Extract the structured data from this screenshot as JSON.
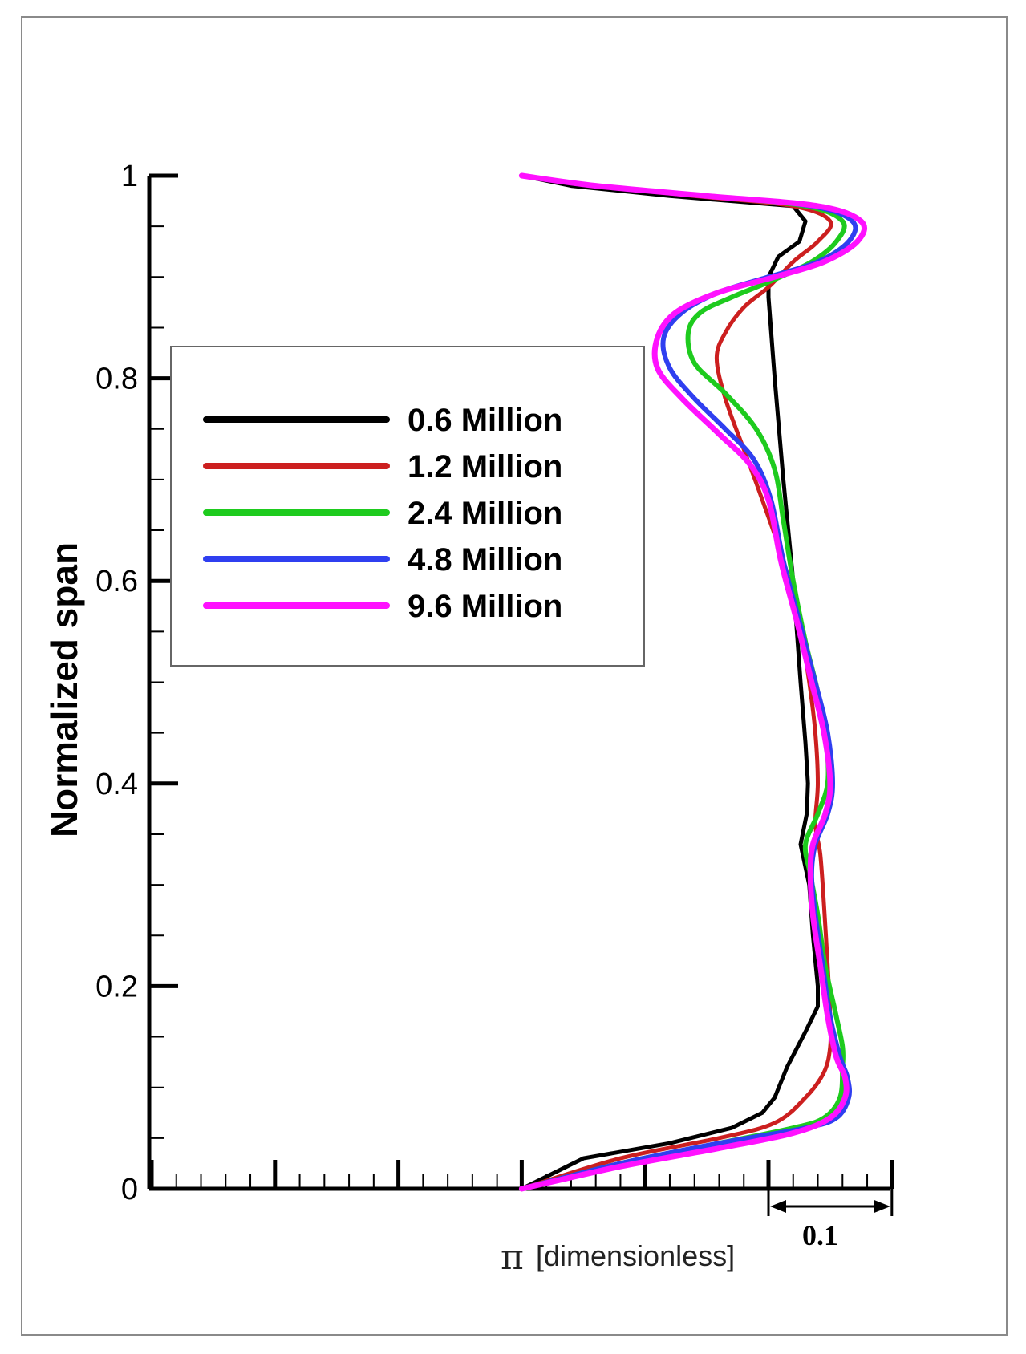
{
  "chart_data": {
    "type": "line",
    "title": "",
    "xlabel_symbol": "π",
    "xlabel_unit": "[dimensionless]",
    "ylabel": "Normalized span",
    "ylim": [
      0,
      1
    ],
    "y_ticks": [
      "0",
      "0.2",
      "0.4",
      "0.6",
      "0.8",
      "1"
    ],
    "y_tick_values": [
      0,
      0.2,
      0.4,
      0.6,
      0.8,
      1
    ],
    "scale_bar_label": "0.1",
    "scale_bar_value": 0.1,
    "xlim": [
      -0.5,
      0.1
    ],
    "x_major_tick_values": [
      -0.5,
      -0.4,
      -0.3,
      -0.2,
      -0.1,
      0.0,
      0.1
    ],
    "legend_position": "upper-left",
    "series": [
      {
        "name": "0.6 Million",
        "color": "#000000",
        "points": [
          [
            -0.2,
            1.0
          ],
          [
            -0.16,
            0.99
          ],
          [
            -0.08,
            0.98
          ],
          [
            0.02,
            0.97
          ],
          [
            0.03,
            0.955
          ],
          [
            0.025,
            0.935
          ],
          [
            0.008,
            0.92
          ],
          [
            0.0,
            0.9
          ],
          [
            0.0,
            0.88
          ],
          [
            0.005,
            0.8
          ],
          [
            0.012,
            0.7
          ],
          [
            0.02,
            0.6
          ],
          [
            0.026,
            0.5
          ],
          [
            0.03,
            0.44
          ],
          [
            0.032,
            0.4
          ],
          [
            0.031,
            0.37
          ],
          [
            0.026,
            0.34
          ],
          [
            0.033,
            0.3
          ],
          [
            0.036,
            0.25
          ],
          [
            0.04,
            0.2
          ],
          [
            0.04,
            0.18
          ],
          [
            0.03,
            0.155
          ],
          [
            0.015,
            0.12
          ],
          [
            0.005,
            0.09
          ],
          [
            -0.005,
            0.075
          ],
          [
            -0.03,
            0.06
          ],
          [
            -0.08,
            0.045
          ],
          [
            -0.15,
            0.03
          ],
          [
            -0.2,
            0.0
          ]
        ]
      },
      {
        "name": "1.2 Million",
        "color": "#cc1f1f",
        "points": [
          [
            -0.2,
            1.0
          ],
          [
            -0.14,
            0.99
          ],
          [
            -0.06,
            0.98
          ],
          [
            0.02,
            0.97
          ],
          [
            0.05,
            0.955
          ],
          [
            0.04,
            0.935
          ],
          [
            0.02,
            0.915
          ],
          [
            0.0,
            0.89
          ],
          [
            -0.02,
            0.87
          ],
          [
            -0.035,
            0.845
          ],
          [
            -0.042,
            0.82
          ],
          [
            -0.035,
            0.78
          ],
          [
            -0.02,
            0.73
          ],
          [
            -0.005,
            0.68
          ],
          [
            0.012,
            0.62
          ],
          [
            0.025,
            0.56
          ],
          [
            0.033,
            0.5
          ],
          [
            0.038,
            0.45
          ],
          [
            0.04,
            0.4
          ],
          [
            0.038,
            0.36
          ],
          [
            0.042,
            0.33
          ],
          [
            0.045,
            0.28
          ],
          [
            0.048,
            0.22
          ],
          [
            0.05,
            0.17
          ],
          [
            0.05,
            0.14
          ],
          [
            0.045,
            0.115
          ],
          [
            0.03,
            0.09
          ],
          [
            0.005,
            0.065
          ],
          [
            -0.04,
            0.05
          ],
          [
            -0.12,
            0.03
          ],
          [
            -0.2,
            0.0
          ]
        ]
      },
      {
        "name": "2.4 Million",
        "color": "#1ecb1e",
        "points": [
          [
            -0.2,
            1.0
          ],
          [
            -0.14,
            0.99
          ],
          [
            -0.05,
            0.98
          ],
          [
            0.03,
            0.97
          ],
          [
            0.06,
            0.955
          ],
          [
            0.055,
            0.935
          ],
          [
            0.035,
            0.915
          ],
          [
            0.0,
            0.895
          ],
          [
            -0.03,
            0.88
          ],
          [
            -0.055,
            0.865
          ],
          [
            -0.065,
            0.845
          ],
          [
            -0.06,
            0.815
          ],
          [
            -0.035,
            0.785
          ],
          [
            -0.01,
            0.75
          ],
          [
            0.005,
            0.71
          ],
          [
            0.012,
            0.66
          ],
          [
            0.02,
            0.6
          ],
          [
            0.03,
            0.54
          ],
          [
            0.04,
            0.49
          ],
          [
            0.047,
            0.44
          ],
          [
            0.048,
            0.4
          ],
          [
            0.04,
            0.37
          ],
          [
            0.03,
            0.34
          ],
          [
            0.034,
            0.31
          ],
          [
            0.04,
            0.27
          ],
          [
            0.046,
            0.22
          ],
          [
            0.055,
            0.17
          ],
          [
            0.06,
            0.14
          ],
          [
            0.06,
            0.12
          ],
          [
            0.058,
            0.09
          ],
          [
            0.045,
            0.07
          ],
          [
            0.02,
            0.06
          ],
          [
            -0.04,
            0.045
          ],
          [
            -0.12,
            0.025
          ],
          [
            -0.2,
            0.0
          ]
        ]
      },
      {
        "name": "4.8 Million",
        "color": "#2f3ff0",
        "points": [
          [
            -0.2,
            1.0
          ],
          [
            -0.14,
            0.99
          ],
          [
            -0.05,
            0.98
          ],
          [
            0.035,
            0.97
          ],
          [
            0.068,
            0.955
          ],
          [
            0.065,
            0.935
          ],
          [
            0.04,
            0.915
          ],
          [
            0.0,
            0.9
          ],
          [
            -0.04,
            0.885
          ],
          [
            -0.07,
            0.865
          ],
          [
            -0.085,
            0.84
          ],
          [
            -0.08,
            0.81
          ],
          [
            -0.06,
            0.78
          ],
          [
            -0.035,
            0.75
          ],
          [
            -0.012,
            0.72
          ],
          [
            0.002,
            0.68
          ],
          [
            0.012,
            0.62
          ],
          [
            0.025,
            0.56
          ],
          [
            0.038,
            0.5
          ],
          [
            0.048,
            0.45
          ],
          [
            0.052,
            0.4
          ],
          [
            0.048,
            0.37
          ],
          [
            0.038,
            0.34
          ],
          [
            0.035,
            0.31
          ],
          [
            0.038,
            0.27
          ],
          [
            0.044,
            0.22
          ],
          [
            0.05,
            0.17
          ],
          [
            0.058,
            0.13
          ],
          [
            0.064,
            0.11
          ],
          [
            0.065,
            0.09
          ],
          [
            0.055,
            0.07
          ],
          [
            0.03,
            0.06
          ],
          [
            -0.04,
            0.045
          ],
          [
            -0.12,
            0.025
          ],
          [
            -0.2,
            0.0
          ]
        ]
      },
      {
        "name": "9.6 Million",
        "color": "#ff11ff",
        "points": [
          [
            -0.2,
            1.0
          ],
          [
            -0.14,
            0.99
          ],
          [
            -0.05,
            0.98
          ],
          [
            0.04,
            0.97
          ],
          [
            0.075,
            0.955
          ],
          [
            0.072,
            0.935
          ],
          [
            0.045,
            0.915
          ],
          [
            0.005,
            0.9
          ],
          [
            -0.04,
            0.885
          ],
          [
            -0.075,
            0.865
          ],
          [
            -0.09,
            0.84
          ],
          [
            -0.09,
            0.81
          ],
          [
            -0.07,
            0.78
          ],
          [
            -0.04,
            0.745
          ],
          [
            -0.015,
            0.715
          ],
          [
            0.0,
            0.68
          ],
          [
            0.01,
            0.62
          ],
          [
            0.023,
            0.56
          ],
          [
            0.035,
            0.5
          ],
          [
            0.045,
            0.45
          ],
          [
            0.05,
            0.4
          ],
          [
            0.046,
            0.37
          ],
          [
            0.036,
            0.34
          ],
          [
            0.034,
            0.31
          ],
          [
            0.036,
            0.27
          ],
          [
            0.042,
            0.22
          ],
          [
            0.048,
            0.17
          ],
          [
            0.055,
            0.13
          ],
          [
            0.062,
            0.11
          ],
          [
            0.062,
            0.09
          ],
          [
            0.05,
            0.07
          ],
          [
            0.02,
            0.055
          ],
          [
            -0.04,
            0.04
          ],
          [
            -0.12,
            0.022
          ],
          [
            -0.2,
            0.0
          ]
        ]
      }
    ]
  }
}
